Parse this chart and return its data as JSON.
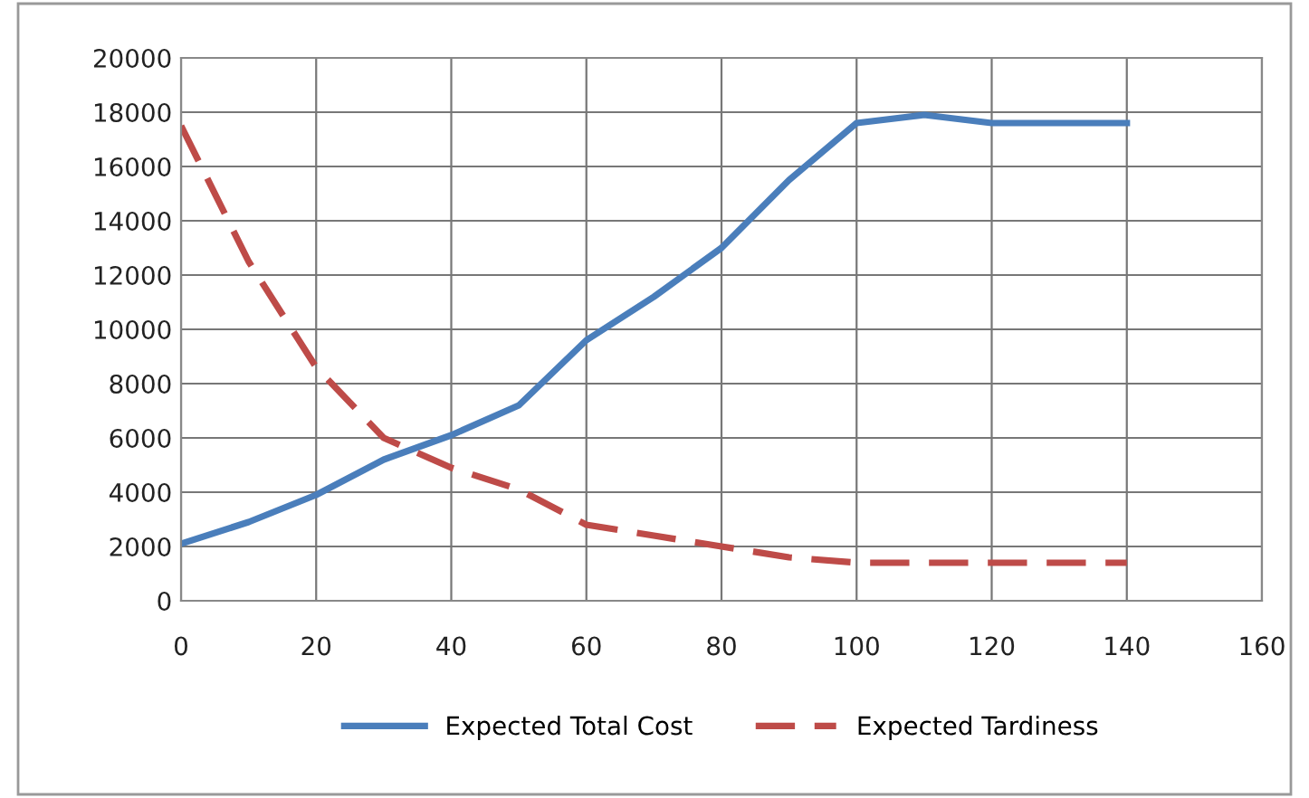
{
  "chart_data": {
    "type": "line",
    "xlim": [
      0,
      160
    ],
    "xticks": [
      0,
      20,
      40,
      60,
      80,
      100,
      120,
      140,
      160
    ],
    "ylim": [
      0,
      20000
    ],
    "yticks": [
      0,
      2000,
      4000,
      6000,
      8000,
      10000,
      12000,
      14000,
      16000,
      18000,
      20000
    ],
    "grid": true,
    "legend": "bottom",
    "marker": "none",
    "x": [
      0,
      10,
      20,
      30,
      40,
      50,
      60,
      70,
      80,
      90,
      100,
      110,
      120,
      130,
      140
    ],
    "series": [
      {
        "name": "Expected Total Cost",
        "color": "#4a7ebb",
        "line_style": "solid",
        "values": [
          2100,
          2900,
          3900,
          5200,
          6100,
          7200,
          9600,
          11200,
          13000,
          15500,
          17600,
          17900,
          17600,
          17600,
          17600
        ]
      },
      {
        "name": "Expected Tardiness",
        "color": "#be4b48",
        "line_style": "dashed",
        "values": [
          17500,
          12500,
          8600,
          6000,
          4900,
          4100,
          2800,
          2400,
          2000,
          1600,
          1400,
          1400,
          1400,
          1400,
          1400
        ]
      }
    ]
  }
}
